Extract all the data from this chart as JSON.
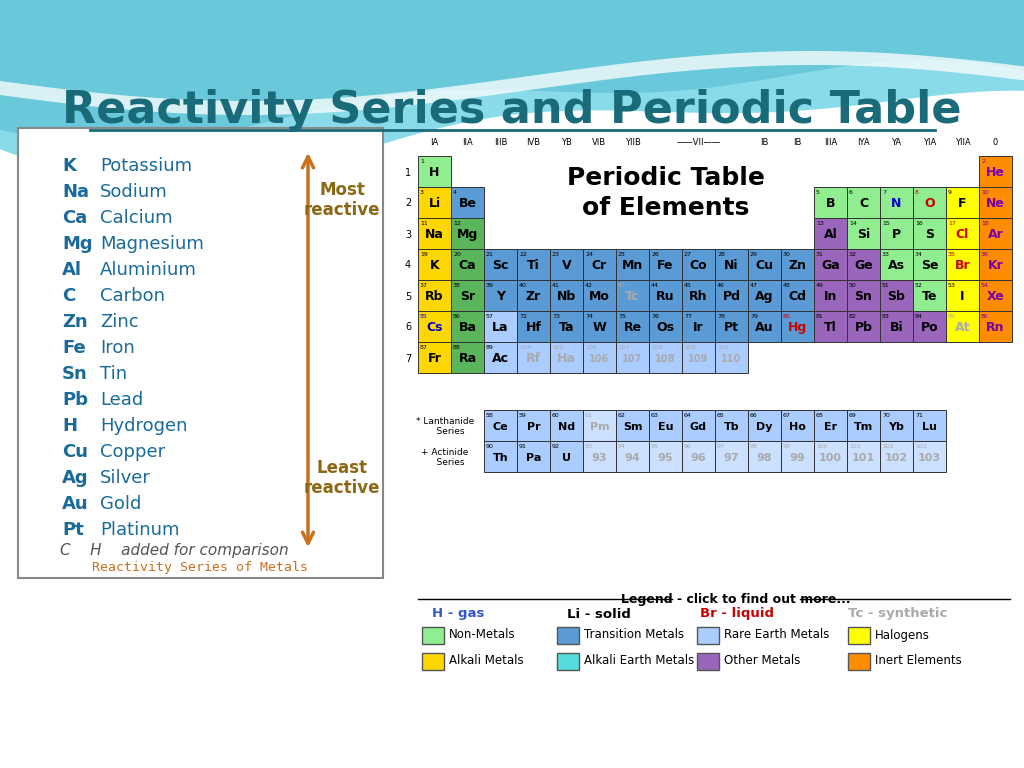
{
  "title": "Reactivity Series and Periodic Table",
  "title_color": "#1a6b7a",
  "bg_color": "#ffffff",
  "reactivity_series": [
    [
      "K",
      "Potassium"
    ],
    [
      "Na",
      "Sodium"
    ],
    [
      "Ca",
      "Calcium"
    ],
    [
      "Mg",
      "Magnesium"
    ],
    [
      "Al",
      "Aluminium"
    ],
    [
      "C",
      "Carbon"
    ],
    [
      "Zn",
      "Zinc"
    ],
    [
      "Fe",
      "Iron"
    ],
    [
      "Sn",
      "Tin"
    ],
    [
      "Pb",
      "Lead"
    ],
    [
      "H",
      "Hydrogen"
    ],
    [
      "Cu",
      "Copper"
    ],
    [
      "Ag",
      "Silver"
    ],
    [
      "Au",
      "Gold"
    ],
    [
      "Pt",
      "Platinum"
    ]
  ],
  "reactivity_text_color": "#1a6b9a",
  "reactivity_label_color": "#8B6914",
  "comparison_color": "#555555",
  "arrow_color": "#c87020",
  "periodic_elements": {
    "H": {
      "row": 1,
      "col": 1,
      "num": 1,
      "color": "#90ee90",
      "text_color": "#000000"
    },
    "He": {
      "row": 1,
      "col": 18,
      "num": 2,
      "color": "#ff8c00",
      "text_color": "#7700aa"
    },
    "Li": {
      "row": 2,
      "col": 1,
      "num": 3,
      "color": "#ffd700",
      "text_color": "#000000"
    },
    "Be": {
      "row": 2,
      "col": 2,
      "num": 4,
      "color": "#5b9bd5",
      "text_color": "#000000"
    },
    "B": {
      "row": 2,
      "col": 13,
      "num": 5,
      "color": "#90ee90",
      "text_color": "#000000"
    },
    "C": {
      "row": 2,
      "col": 14,
      "num": 6,
      "color": "#90ee90",
      "text_color": "#000000"
    },
    "N": {
      "row": 2,
      "col": 15,
      "num": 7,
      "color": "#90ee90",
      "text_color": "#0000cc"
    },
    "O": {
      "row": 2,
      "col": 16,
      "num": 8,
      "color": "#90ee90",
      "text_color": "#cc0000"
    },
    "F": {
      "row": 2,
      "col": 17,
      "num": 9,
      "color": "#ffff00",
      "text_color": "#000000"
    },
    "Ne": {
      "row": 2,
      "col": 18,
      "num": 10,
      "color": "#ff8c00",
      "text_color": "#7700aa"
    },
    "Na": {
      "row": 3,
      "col": 1,
      "num": 11,
      "color": "#ffd700",
      "text_color": "#000000"
    },
    "Mg": {
      "row": 3,
      "col": 2,
      "num": 12,
      "color": "#5bb55b",
      "text_color": "#000000"
    },
    "Al": {
      "row": 3,
      "col": 13,
      "num": 13,
      "color": "#9966bb",
      "text_color": "#000000"
    },
    "Si": {
      "row": 3,
      "col": 14,
      "num": 14,
      "color": "#90ee90",
      "text_color": "#000000"
    },
    "P": {
      "row": 3,
      "col": 15,
      "num": 15,
      "color": "#90ee90",
      "text_color": "#000000"
    },
    "S": {
      "row": 3,
      "col": 16,
      "num": 16,
      "color": "#90ee90",
      "text_color": "#000000"
    },
    "Cl": {
      "row": 3,
      "col": 17,
      "num": 17,
      "color": "#ffff00",
      "text_color": "#cc0000"
    },
    "Ar": {
      "row": 3,
      "col": 18,
      "num": 18,
      "color": "#ff8c00",
      "text_color": "#7700aa"
    },
    "K": {
      "row": 4,
      "col": 1,
      "num": 19,
      "color": "#ffd700",
      "text_color": "#000000"
    },
    "Ca": {
      "row": 4,
      "col": 2,
      "num": 20,
      "color": "#5bb55b",
      "text_color": "#000000"
    },
    "Sc": {
      "row": 4,
      "col": 3,
      "num": 21,
      "color": "#5b9bd5",
      "text_color": "#000000"
    },
    "Ti": {
      "row": 4,
      "col": 4,
      "num": 22,
      "color": "#5b9bd5",
      "text_color": "#000000"
    },
    "V": {
      "row": 4,
      "col": 5,
      "num": 23,
      "color": "#5b9bd5",
      "text_color": "#000000"
    },
    "Cr": {
      "row": 4,
      "col": 6,
      "num": 24,
      "color": "#5b9bd5",
      "text_color": "#000000"
    },
    "Mn": {
      "row": 4,
      "col": 7,
      "num": 25,
      "color": "#5b9bd5",
      "text_color": "#000000"
    },
    "Fe": {
      "row": 4,
      "col": 8,
      "num": 26,
      "color": "#5b9bd5",
      "text_color": "#000000"
    },
    "Co": {
      "row": 4,
      "col": 9,
      "num": 27,
      "color": "#5b9bd5",
      "text_color": "#000000"
    },
    "Ni": {
      "row": 4,
      "col": 10,
      "num": 28,
      "color": "#5b9bd5",
      "text_color": "#000000"
    },
    "Cu": {
      "row": 4,
      "col": 11,
      "num": 29,
      "color": "#5b9bd5",
      "text_color": "#000000"
    },
    "Zn": {
      "row": 4,
      "col": 12,
      "num": 30,
      "color": "#5b9bd5",
      "text_color": "#000000"
    },
    "Ga": {
      "row": 4,
      "col": 13,
      "num": 31,
      "color": "#9966bb",
      "text_color": "#000000"
    },
    "Ge": {
      "row": 4,
      "col": 14,
      "num": 32,
      "color": "#9966bb",
      "text_color": "#000000"
    },
    "As": {
      "row": 4,
      "col": 15,
      "num": 33,
      "color": "#90ee90",
      "text_color": "#000000"
    },
    "Se": {
      "row": 4,
      "col": 16,
      "num": 34,
      "color": "#90ee90",
      "text_color": "#000000"
    },
    "Br": {
      "row": 4,
      "col": 17,
      "num": 35,
      "color": "#ffff00",
      "text_color": "#cc0000"
    },
    "Kr": {
      "row": 4,
      "col": 18,
      "num": 36,
      "color": "#ff8c00",
      "text_color": "#7700aa"
    },
    "Rb": {
      "row": 5,
      "col": 1,
      "num": 37,
      "color": "#ffd700",
      "text_color": "#000000"
    },
    "Sr": {
      "row": 5,
      "col": 2,
      "num": 38,
      "color": "#5bb55b",
      "text_color": "#000000"
    },
    "Y": {
      "row": 5,
      "col": 3,
      "num": 39,
      "color": "#5b9bd5",
      "text_color": "#000000"
    },
    "Zr": {
      "row": 5,
      "col": 4,
      "num": 40,
      "color": "#5b9bd5",
      "text_color": "#000000"
    },
    "Nb": {
      "row": 5,
      "col": 5,
      "num": 41,
      "color": "#5b9bd5",
      "text_color": "#000000"
    },
    "Mo": {
      "row": 5,
      "col": 6,
      "num": 42,
      "color": "#5b9bd5",
      "text_color": "#000000"
    },
    "Tc": {
      "row": 5,
      "col": 7,
      "num": 43,
      "color": "#5b9bd5",
      "text_color": "#aaaaaa"
    },
    "Ru": {
      "row": 5,
      "col": 8,
      "num": 44,
      "color": "#5b9bd5",
      "text_color": "#000000"
    },
    "Rh": {
      "row": 5,
      "col": 9,
      "num": 45,
      "color": "#5b9bd5",
      "text_color": "#000000"
    },
    "Pd": {
      "row": 5,
      "col": 10,
      "num": 46,
      "color": "#5b9bd5",
      "text_color": "#000000"
    },
    "Ag": {
      "row": 5,
      "col": 11,
      "num": 47,
      "color": "#5b9bd5",
      "text_color": "#000000"
    },
    "Cd": {
      "row": 5,
      "col": 12,
      "num": 48,
      "color": "#5b9bd5",
      "text_color": "#000000"
    },
    "In": {
      "row": 5,
      "col": 13,
      "num": 49,
      "color": "#9966bb",
      "text_color": "#000000"
    },
    "Sn": {
      "row": 5,
      "col": 14,
      "num": 50,
      "color": "#9966bb",
      "text_color": "#000000"
    },
    "Sb": {
      "row": 5,
      "col": 15,
      "num": 51,
      "color": "#9966bb",
      "text_color": "#000000"
    },
    "Te": {
      "row": 5,
      "col": 16,
      "num": 52,
      "color": "#90ee90",
      "text_color": "#000000"
    },
    "I": {
      "row": 5,
      "col": 17,
      "num": 53,
      "color": "#ffff00",
      "text_color": "#000000"
    },
    "Xe": {
      "row": 5,
      "col": 18,
      "num": 54,
      "color": "#ff8c00",
      "text_color": "#7700aa"
    },
    "Cs": {
      "row": 6,
      "col": 1,
      "num": 55,
      "color": "#ffd700",
      "text_color": "#0000cc"
    },
    "Ba": {
      "row": 6,
      "col": 2,
      "num": 56,
      "color": "#5bb55b",
      "text_color": "#000000"
    },
    "La": {
      "row": 6,
      "col": 3,
      "num": 57,
      "color": "#aaccff",
      "text_color": "#000000"
    },
    "Hf": {
      "row": 6,
      "col": 4,
      "num": 72,
      "color": "#5b9bd5",
      "text_color": "#000000"
    },
    "Ta": {
      "row": 6,
      "col": 5,
      "num": 73,
      "color": "#5b9bd5",
      "text_color": "#000000"
    },
    "W": {
      "row": 6,
      "col": 6,
      "num": 74,
      "color": "#5b9bd5",
      "text_color": "#000000"
    },
    "Re": {
      "row": 6,
      "col": 7,
      "num": 75,
      "color": "#5b9bd5",
      "text_color": "#000000"
    },
    "Os": {
      "row": 6,
      "col": 8,
      "num": 76,
      "color": "#5b9bd5",
      "text_color": "#000000"
    },
    "Ir": {
      "row": 6,
      "col": 9,
      "num": 77,
      "color": "#5b9bd5",
      "text_color": "#000000"
    },
    "Pt": {
      "row": 6,
      "col": 10,
      "num": 78,
      "color": "#5b9bd5",
      "text_color": "#000000"
    },
    "Au": {
      "row": 6,
      "col": 11,
      "num": 79,
      "color": "#5b9bd5",
      "text_color": "#000000"
    },
    "Hg": {
      "row": 6,
      "col": 12,
      "num": 80,
      "color": "#5b9bd5",
      "text_color": "#cc0000"
    },
    "Tl": {
      "row": 6,
      "col": 13,
      "num": 81,
      "color": "#9966bb",
      "text_color": "#000000"
    },
    "Pb": {
      "row": 6,
      "col": 14,
      "num": 82,
      "color": "#9966bb",
      "text_color": "#000000"
    },
    "Bi": {
      "row": 6,
      "col": 15,
      "num": 83,
      "color": "#9966bb",
      "text_color": "#000000"
    },
    "Po": {
      "row": 6,
      "col": 16,
      "num": 84,
      "color": "#9966bb",
      "text_color": "#000000"
    },
    "At": {
      "row": 6,
      "col": 17,
      "num": 85,
      "color": "#ffff00",
      "text_color": "#aaaaaa"
    },
    "Rn": {
      "row": 6,
      "col": 18,
      "num": 86,
      "color": "#ff8c00",
      "text_color": "#7700aa"
    },
    "Fr": {
      "row": 7,
      "col": 1,
      "num": 87,
      "color": "#ffd700",
      "text_color": "#000000"
    },
    "Ra": {
      "row": 7,
      "col": 2,
      "num": 88,
      "color": "#5bb55b",
      "text_color": "#000000"
    },
    "Ac": {
      "row": 7,
      "col": 3,
      "num": 89,
      "color": "#aaccff",
      "text_color": "#000000"
    },
    "Rf": {
      "row": 7,
      "col": 4,
      "num": 104,
      "color": "#aaccff",
      "text_color": "#aaaaaa"
    },
    "Ha": {
      "row": 7,
      "col": 5,
      "num": 105,
      "color": "#aaccff",
      "text_color": "#aaaaaa"
    },
    "e106": {
      "row": 7,
      "col": 6,
      "num": 106,
      "color": "#aaccff",
      "text_color": "#aaaaaa"
    },
    "e107": {
      "row": 7,
      "col": 7,
      "num": 107,
      "color": "#aaccff",
      "text_color": "#aaaaaa"
    },
    "e108": {
      "row": 7,
      "col": 8,
      "num": 108,
      "color": "#aaccff",
      "text_color": "#aaaaaa"
    },
    "e109": {
      "row": 7,
      "col": 9,
      "num": 109,
      "color": "#aaccff",
      "text_color": "#aaaaaa"
    },
    "e110": {
      "row": 7,
      "col": 10,
      "num": 110,
      "color": "#aaccff",
      "text_color": "#aaaaaa"
    }
  },
  "lanthanides": [
    {
      "sym": "Ce",
      "num": 58
    },
    {
      "sym": "Pr",
      "num": 59
    },
    {
      "sym": "Nd",
      "num": 60
    },
    {
      "sym": "Pm",
      "num": 61,
      "faded": true
    },
    {
      "sym": "Sm",
      "num": 62
    },
    {
      "sym": "Eu",
      "num": 63
    },
    {
      "sym": "Gd",
      "num": 64
    },
    {
      "sym": "Tb",
      "num": 65
    },
    {
      "sym": "Dy",
      "num": 66
    },
    {
      "sym": "Ho",
      "num": 67
    },
    {
      "sym": "Er",
      "num": 68
    },
    {
      "sym": "Tm",
      "num": 69
    },
    {
      "sym": "Yb",
      "num": 70
    },
    {
      "sym": "Lu",
      "num": 71
    }
  ],
  "actinides": [
    {
      "sym": "Th",
      "num": 90
    },
    {
      "sym": "Pa",
      "num": 91
    },
    {
      "sym": "U",
      "num": 92
    },
    {
      "sym": "93",
      "num": 93,
      "faded": true
    },
    {
      "sym": "94",
      "num": 94,
      "faded": true
    },
    {
      "sym": "95",
      "num": 95,
      "faded": true
    },
    {
      "sym": "96",
      "num": 96,
      "faded": true
    },
    {
      "sym": "97",
      "num": 97,
      "faded": true
    },
    {
      "sym": "98",
      "num": 98,
      "faded": true
    },
    {
      "sym": "99",
      "num": 99,
      "faded": true
    },
    {
      "sym": "100",
      "num": 100,
      "faded": true
    },
    {
      "sym": "101",
      "num": 101,
      "faded": true
    },
    {
      "sym": "102",
      "num": 102,
      "faded": true
    },
    {
      "sym": "103",
      "num": 103,
      "faded": true
    }
  ]
}
